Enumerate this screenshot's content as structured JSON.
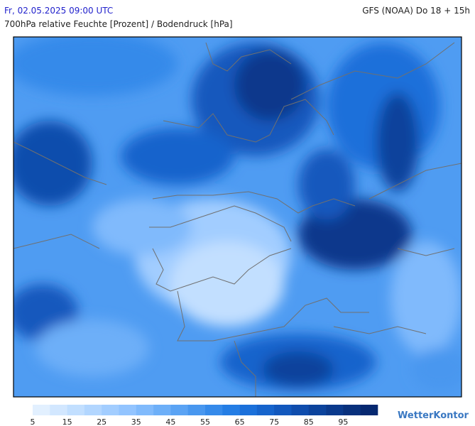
{
  "header": {
    "datetime": "Fr, 02.05.2025 09:00 UTC",
    "model": "GFS (NOAA) Do 18 + 15h",
    "subtitle": "700hPa relative Feuchte [Prozent] / Bodendruck [hPa]"
  },
  "legend": {
    "colors": [
      "#e2f0ff",
      "#d2e7ff",
      "#c2dfff",
      "#b2d6ff",
      "#a2cdff",
      "#92c4ff",
      "#80bafc",
      "#6daff8",
      "#5aa3f4",
      "#4897ef",
      "#358aea",
      "#247de4",
      "#1b70da",
      "#1664cc",
      "#1258bd",
      "#0f4dad",
      "#0c439c",
      "#0a398c",
      "#08307c",
      "#062870"
    ],
    "ticks": [
      5,
      15,
      25,
      35,
      45,
      55,
      65,
      75,
      85,
      95
    ]
  },
  "brand": "WetterKontor"
}
